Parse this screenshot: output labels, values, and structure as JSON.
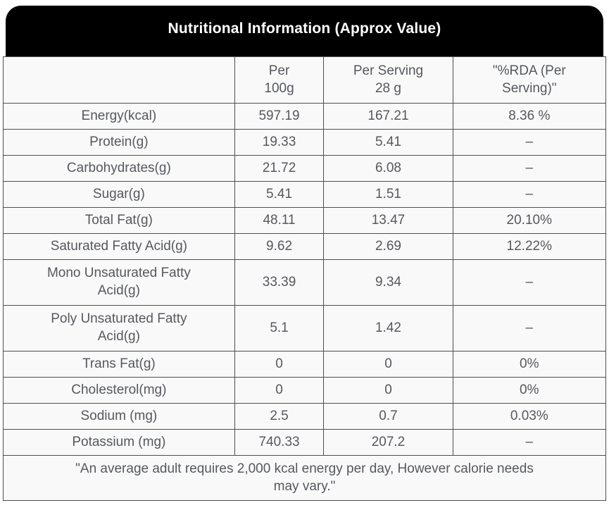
{
  "title": "Nutritional Information (Approx Value)",
  "colors": {
    "title_bar_bg": "#000000",
    "title_text": "#ffffff",
    "cell_bg": "#f9f9f9",
    "border": "#4e4e4e",
    "text": "#55585e"
  },
  "table": {
    "header": {
      "nutrient": "",
      "per_100g": "Per\n100g",
      "per_serving": "Per Serving\n28 g",
      "rda": "\"%RDA (Per\nServing)\""
    },
    "rows": [
      {
        "label": "Energy(kcal)",
        "per_100g": "597.19",
        "per_serving": "167.21",
        "rda": "8.36 %"
      },
      {
        "label": "Protein(g)",
        "per_100g": "19.33",
        "per_serving": "5.41",
        "rda": "–"
      },
      {
        "label": "Carbohydrates(g)",
        "per_100g": "21.72",
        "per_serving": "6.08",
        "rda": "–"
      },
      {
        "label": "Sugar(g)",
        "per_100g": "5.41",
        "per_serving": "1.51",
        "rda": "–"
      },
      {
        "label": "Total Fat(g)",
        "per_100g": "48.11",
        "per_serving": "13.47",
        "rda": "20.10%"
      },
      {
        "label": "Saturated Fatty Acid(g)",
        "per_100g": "9.62",
        "per_serving": "2.69",
        "rda": "12.22%"
      },
      {
        "label": "Mono Unsaturated Fatty\nAcid(g)",
        "per_100g": "33.39",
        "per_serving": "9.34",
        "rda": "–"
      },
      {
        "label": "Poly Unsaturated Fatty\nAcid(g)",
        "per_100g": "5.1",
        "per_serving": "1.42",
        "rda": "–"
      },
      {
        "label": "Trans Fat(g)",
        "per_100g": "0",
        "per_serving": "0",
        "rda": "0%"
      },
      {
        "label": "Cholesterol(mg)",
        "per_100g": "0",
        "per_serving": "0",
        "rda": "0%"
      },
      {
        "label": "Sodium (mg)",
        "per_100g": "2.5",
        "per_serving": "0.7",
        "rda": "0.03%"
      },
      {
        "label": "Potassium (mg)",
        "per_100g": "740.33",
        "per_serving": "207.2",
        "rda": "–"
      }
    ],
    "footnote": "\"An average adult requires 2,000 kcal energy per day, However calorie needs\nmay vary.\""
  }
}
